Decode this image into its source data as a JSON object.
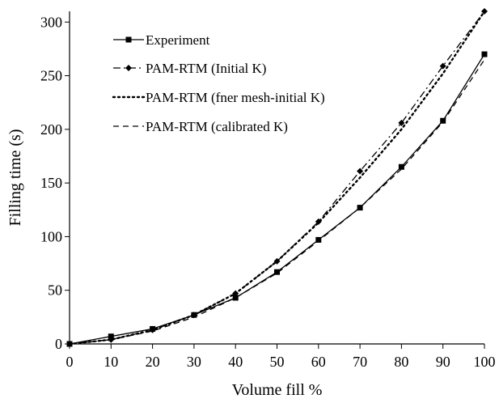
{
  "chart_data": {
    "type": "line",
    "xlabel": "Volume fill %",
    "ylabel": "Filling time (s)",
    "xlim": [
      0,
      100
    ],
    "ylim": [
      0,
      310
    ],
    "xticks": [
      "0",
      "10",
      "20",
      "30",
      "40",
      "50",
      "60",
      "70",
      "80",
      "90",
      "100"
    ],
    "yticks": [
      "0",
      "50",
      "100",
      "150",
      "200",
      "250",
      "300"
    ],
    "grid": false,
    "legend_position": "top-left",
    "x": [
      0,
      10,
      20,
      30,
      40,
      50,
      60,
      70,
      80,
      90,
      100
    ],
    "series": [
      {
        "name": "Experiment",
        "style": "solid-square",
        "values": [
          0,
          7,
          14,
          27,
          43,
          67,
          97,
          127,
          165,
          208,
          270
        ]
      },
      {
        "name": "PAM-RTM (Initial K)",
        "style": "dashdot-diamond",
        "values": [
          0,
          4,
          13,
          27,
          47,
          77,
          114,
          161,
          206,
          259,
          310
        ]
      },
      {
        "name": "PAM-RTM (fner mesh-initial K)",
        "style": "dotted",
        "values": [
          0,
          4,
          13,
          27,
          47,
          77,
          113,
          155,
          200,
          252,
          310
        ]
      },
      {
        "name": "PAM-RTM (calibrated K)",
        "style": "dashed",
        "values": [
          0,
          4,
          12,
          25,
          43,
          66,
          96,
          127,
          163,
          207,
          265
        ]
      }
    ]
  }
}
